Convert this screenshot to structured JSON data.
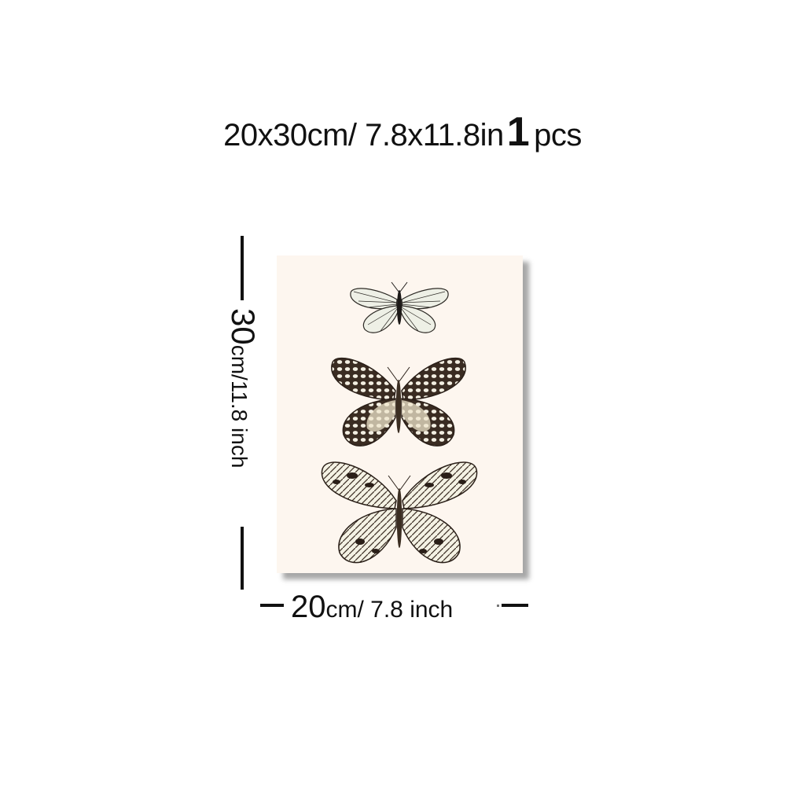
{
  "title": {
    "size_text": "20x30cm/ 7.8x11.8in",
    "quantity_num": "1",
    "quantity_unit": "pcs"
  },
  "height_label": {
    "number": "30",
    "unit_text": "cm/11.8 inch"
  },
  "width_label": {
    "number": "20",
    "unit_text": "cm/ 7.8 inch"
  },
  "artwork": {
    "subject": "three butterflies",
    "background_color": "#fdf6ef",
    "wing_dark_color": "#3a2c22",
    "wing_light_color": "#f3f1e6"
  }
}
